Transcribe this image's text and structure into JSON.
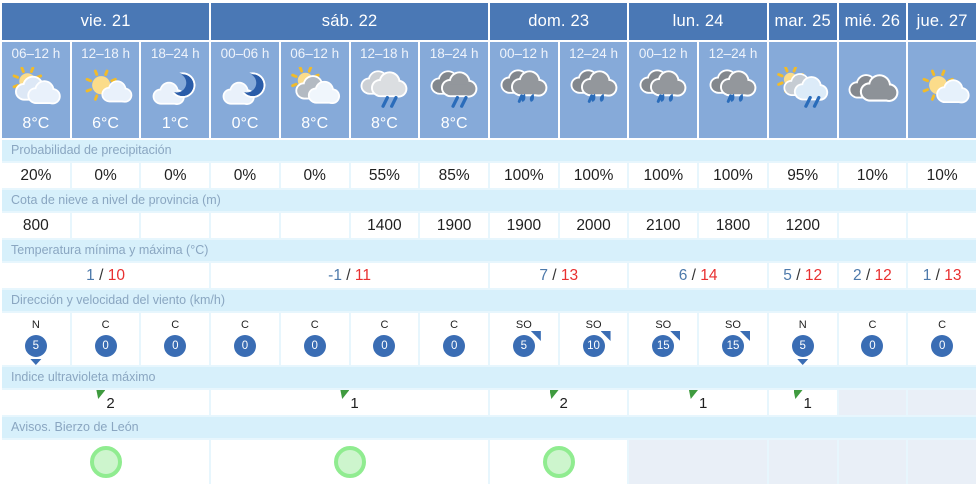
{
  "days": [
    {
      "label": "vie. 21",
      "periods": [
        {
          "time": "06–12 h",
          "icon": "sun-behind-clouds",
          "temp": "8°C"
        },
        {
          "time": "12–18 h",
          "icon": "sun-cloud",
          "temp": "6°C"
        },
        {
          "time": "18–24 h",
          "icon": "moon-cloud",
          "temp": "1°C"
        }
      ]
    },
    {
      "label": "sáb. 22",
      "periods": [
        {
          "time": "00–06 h",
          "icon": "moon-cloud",
          "temp": "0°C"
        },
        {
          "time": "06–12 h",
          "icon": "sun-gray-cloud",
          "temp": "8°C"
        },
        {
          "time": "12–18 h",
          "icon": "rain-light",
          "temp": "8°C"
        },
        {
          "time": "18–24 h",
          "icon": "rain-dark",
          "temp": "8°C"
        }
      ]
    },
    {
      "label": "dom. 23",
      "periods": [
        {
          "time": "00–12 h",
          "icon": "rain-heavy",
          "temp": ""
        },
        {
          "time": "12–24 h",
          "icon": "rain-heavy",
          "temp": ""
        }
      ]
    },
    {
      "label": "lun. 24",
      "periods": [
        {
          "time": "00–12 h",
          "icon": "rain-heavy",
          "temp": ""
        },
        {
          "time": "12–24 h",
          "icon": "rain-heavy",
          "temp": ""
        }
      ]
    },
    {
      "label": "mar. 25",
      "periods": [
        {
          "time": "",
          "icon": "sun-cloud-rain",
          "temp": ""
        }
      ]
    },
    {
      "label": "mié. 26",
      "periods": [
        {
          "time": "",
          "icon": "clouds-gray",
          "temp": ""
        }
      ]
    },
    {
      "label": "jue. 27",
      "periods": [
        {
          "time": "",
          "icon": "sun-cloud-light",
          "temp": ""
        }
      ]
    }
  ],
  "rows": {
    "precipitation": {
      "label": "Probabilidad de precipitación",
      "values": [
        "20%",
        "0%",
        "0%",
        "0%",
        "0%",
        "55%",
        "85%",
        "100%",
        "100%",
        "100%",
        "100%",
        "95%",
        "10%",
        "10%"
      ]
    },
    "snow_level": {
      "label": "Cota de nieve a nivel de provincia (m)",
      "values": [
        "800",
        "",
        "",
        "",
        "",
        "1400",
        "1900",
        "1900",
        "2000",
        "2100",
        "1800",
        "1200",
        "",
        ""
      ]
    },
    "temperature": {
      "label": "Temperatura mínima y máxima (°C)",
      "values": [
        {
          "min": "1",
          "max": "10"
        },
        {
          "min": "-1",
          "max": "11"
        },
        {
          "min": "7",
          "max": "13"
        },
        {
          "min": "6",
          "max": "14"
        },
        {
          "min": "5",
          "max": "12"
        },
        {
          "min": "2",
          "max": "12"
        },
        {
          "min": "1",
          "max": "13"
        }
      ]
    },
    "wind": {
      "label": "Dirección y velocidad del viento (km/h)",
      "values": [
        {
          "dir": "N",
          "speed": "5",
          "arrow": "s"
        },
        {
          "dir": "C",
          "speed": "0",
          "arrow": ""
        },
        {
          "dir": "C",
          "speed": "0",
          "arrow": ""
        },
        {
          "dir": "C",
          "speed": "0",
          "arrow": ""
        },
        {
          "dir": "C",
          "speed": "0",
          "arrow": ""
        },
        {
          "dir": "C",
          "speed": "0",
          "arrow": ""
        },
        {
          "dir": "C",
          "speed": "0",
          "arrow": ""
        },
        {
          "dir": "SO",
          "speed": "5",
          "arrow": "ne"
        },
        {
          "dir": "SO",
          "speed": "10",
          "arrow": "ne"
        },
        {
          "dir": "SO",
          "speed": "15",
          "arrow": "ne"
        },
        {
          "dir": "SO",
          "speed": "15",
          "arrow": "ne"
        },
        {
          "dir": "N",
          "speed": "5",
          "arrow": "s"
        },
        {
          "dir": "C",
          "speed": "0",
          "arrow": ""
        },
        {
          "dir": "C",
          "speed": "0",
          "arrow": ""
        }
      ]
    },
    "uv": {
      "label": "Indice ultravioleta máximo",
      "values": [
        "2",
        "1",
        "2",
        "1",
        "1",
        "",
        ""
      ]
    },
    "warnings": {
      "label": "Avisos. Bierzo de León",
      "values": [
        "green",
        "green",
        "green",
        "",
        "",
        "",
        ""
      ]
    }
  },
  "colors": {
    "day_header": "#4a78b5",
    "forecast_cell": "#86aad9",
    "label_band": "#d7f0fb",
    "label_text": "#8aa6c1",
    "wind_badge": "#3a6db4",
    "temp_min": "#4d79aa",
    "temp_max": "#e83030",
    "uv_flag": "#3f9b3f",
    "warning_green": "#90ec90",
    "rain": "#2a6cba"
  }
}
